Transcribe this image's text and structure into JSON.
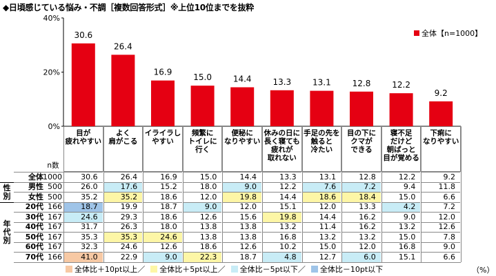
{
  "title": "◆日頃感じている悩み・不調［複数回答形式］※上位10位までを抜粋",
  "unit_label": "（%）",
  "colors": {
    "bar": "#e50012",
    "hi10": "#f7c9a4",
    "hi5": "#fdf6a6",
    "lo5": "#c8ecf6",
    "lo10": "#9fc4e8"
  },
  "chart_data": {
    "type": "bar",
    "categories": [
      "目が\n疲れやすい",
      "よく\n肩がこる",
      "イライラし\nやすい",
      "頻繁に\nトイレに\n行く",
      "便秘に\nなりやすい",
      "休みの日に\n長く寝ても\n疲れが\n取れない",
      "手足の先を\n触ると\n冷たい",
      "目の下に\nクマが\nできる",
      "寝不足\nだけど\n朝ばっと\n目が覚める",
      "下痢に\nなりやすい"
    ],
    "series": [
      {
        "name": "全体【n=1000】",
        "values": [
          30.6,
          26.4,
          16.9,
          15.0,
          14.4,
          13.3,
          13.1,
          12.8,
          12.2,
          9.2
        ]
      }
    ],
    "ylim": [
      0,
      40
    ],
    "yticks": [
      "0%",
      "20%",
      "40%"
    ],
    "legend_position": "top-right"
  },
  "table": {
    "n_header": "n数",
    "groups": [
      {
        "label": "",
        "rows": [
          {
            "label": "全体",
            "n": "1000",
            "values": [
              "30.6",
              "26.4",
              "16.9",
              "15.0",
              "14.4",
              "13.3",
              "13.1",
              "12.8",
              "12.2",
              "9.2"
            ],
            "hl": [
              "",
              "",
              "",
              "",
              "",
              "",
              "",
              "",
              "",
              ""
            ]
          }
        ]
      },
      {
        "label": "性\n別",
        "rows": [
          {
            "label": "男性",
            "n": "500",
            "values": [
              "26.0",
              "17.6",
              "15.2",
              "18.0",
              "9.0",
              "12.2",
              "7.6",
              "7.2",
              "9.4",
              "11.8"
            ],
            "hl": [
              "",
              "lo5",
              "",
              "",
              "lo5",
              "",
              "lo5",
              "lo5",
              "",
              ""
            ]
          },
          {
            "label": "女性",
            "n": "500",
            "values": [
              "35.2",
              "35.2",
              "18.6",
              "12.0",
              "19.8",
              "14.4",
              "18.6",
              "18.4",
              "15.0",
              "6.6"
            ],
            "hl": [
              "",
              "hi5",
              "",
              "",
              "hi5",
              "",
              "hi5",
              "hi5",
              "",
              ""
            ]
          }
        ]
      },
      {
        "label": "年\n代\n別",
        "rows": [
          {
            "label": "20代",
            "n": "166",
            "values": [
              "18.7",
              "19.9",
              "18.7",
              "9.0",
              "12.0",
              "15.1",
              "12.0",
              "13.3",
              "4.2",
              "7.2"
            ],
            "hl": [
              "lo10",
              "",
              "",
              "lo5",
              "",
              "",
              "",
              "",
              "lo5",
              ""
            ]
          },
          {
            "label": "30代",
            "n": "167",
            "values": [
              "24.6",
              "29.3",
              "18.6",
              "12.6",
              "15.6",
              "19.8",
              "14.4",
              "16.2",
              "9.0",
              "12.0"
            ],
            "hl": [
              "lo5",
              "",
              "",
              "",
              "",
              "hi5",
              "",
              "",
              "",
              ""
            ]
          },
          {
            "label": "40代",
            "n": "167",
            "values": [
              "31.7",
              "26.3",
              "18.0",
              "13.8",
              "13.8",
              "13.2",
              "11.4",
              "16.2",
              "13.2",
              "12.6"
            ],
            "hl": [
              "",
              "",
              "",
              "",
              "",
              "",
              "",
              "",
              "",
              ""
            ]
          },
          {
            "label": "50代",
            "n": "167",
            "values": [
              "35.3",
              "35.3",
              "24.6",
              "13.8",
              "13.8",
              "16.8",
              "13.2",
              "13.2",
              "15.0",
              "7.8"
            ],
            "hl": [
              "",
              "hi5",
              "hi5",
              "",
              "",
              "",
              "",
              "",
              "",
              ""
            ]
          },
          {
            "label": "60代",
            "n": "167",
            "values": [
              "32.3",
              "24.6",
              "12.6",
              "18.6",
              "12.6",
              "10.2",
              "15.0",
              "12.0",
              "16.8",
              "9.0"
            ],
            "hl": [
              "",
              "",
              "",
              "",
              "",
              "",
              "",
              "",
              "",
              ""
            ]
          },
          {
            "label": "70代",
            "n": "166",
            "values": [
              "41.0",
              "22.9",
              "9.0",
              "22.3",
              "18.7",
              "4.8",
              "12.7",
              "6.0",
              "15.1",
              "6.6"
            ],
            "hl": [
              "hi10",
              "",
              "lo5",
              "hi5",
              "",
              "lo5",
              "",
              "lo5",
              "",
              ""
            ]
          }
        ]
      }
    ]
  },
  "footer_legend": [
    {
      "key": "hi10",
      "label": "全体比＋10pt以上／"
    },
    {
      "key": "hi5",
      "label": "全体比＋5pt以上／"
    },
    {
      "key": "lo5",
      "label": "全体比－5pt以下／"
    },
    {
      "key": "lo10",
      "label": "全体比－10pt以下"
    }
  ]
}
